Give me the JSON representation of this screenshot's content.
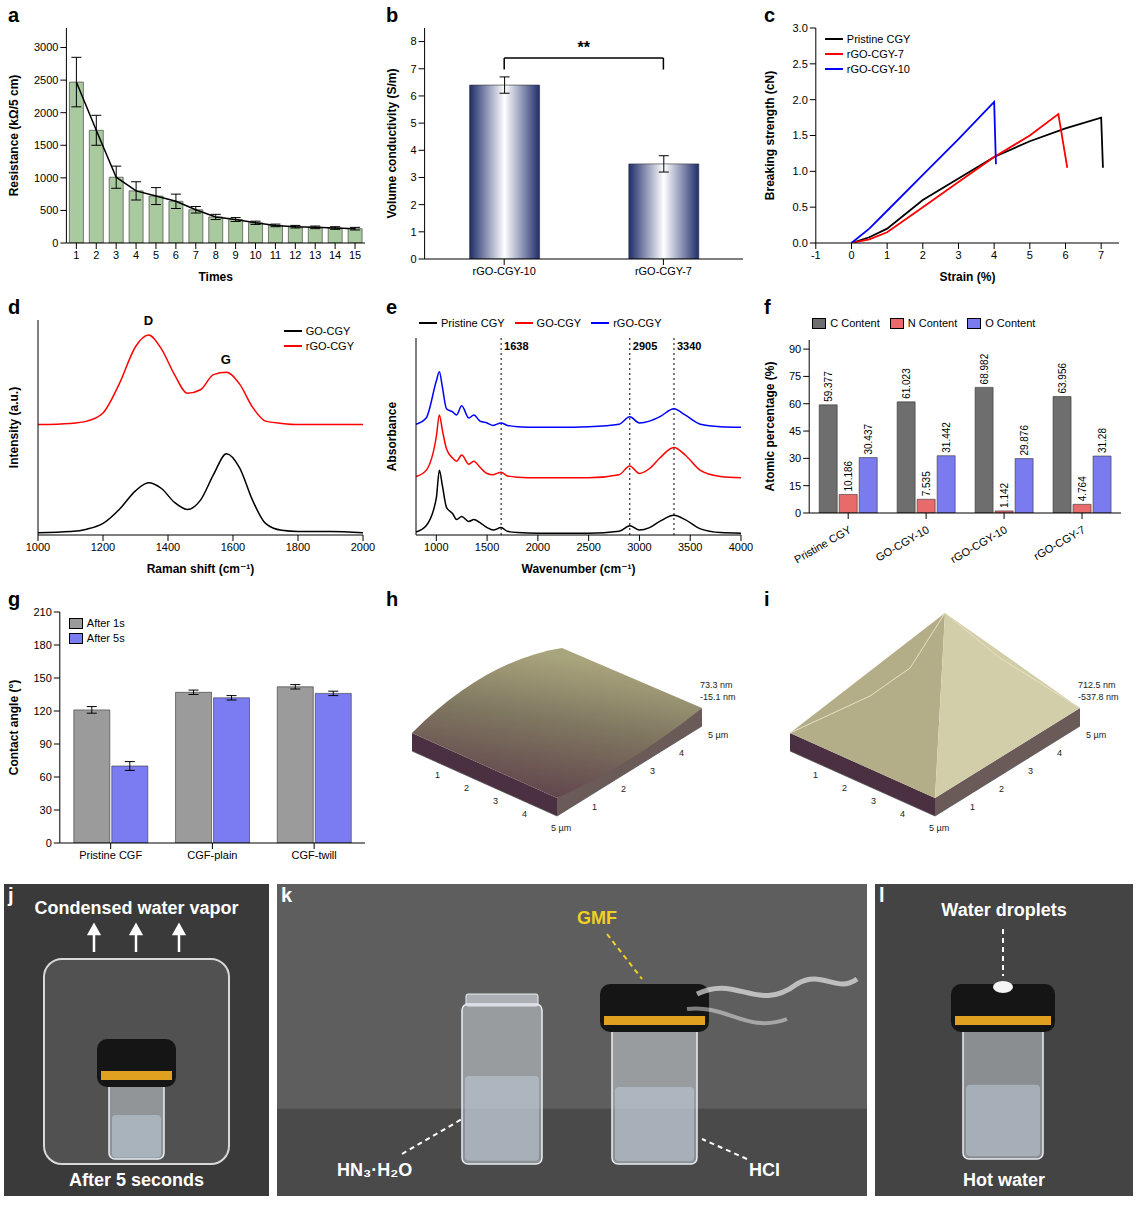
{
  "chart_data": [
    {
      "panel": "a",
      "type": "bar",
      "x_label": "Times",
      "y_label": "Resistance (kΩ/5 cm)",
      "categories": [
        "1",
        "2",
        "3",
        "4",
        "5",
        "6",
        "7",
        "8",
        "9",
        "10",
        "11",
        "12",
        "13",
        "14",
        "15"
      ],
      "series": [
        {
          "type": "bar",
          "color": "#a9c99e",
          "values": [
            2470,
            1730,
            1010,
            800,
            720,
            640,
            510,
            400,
            360,
            310,
            270,
            250,
            240,
            230,
            220
          ],
          "errors": [
            380,
            230,
            170,
            140,
            130,
            110,
            50,
            40,
            30,
            25,
            20,
            20,
            20,
            20,
            20
          ]
        },
        {
          "type": "line",
          "color": "#000000",
          "values": [
            2470,
            1730,
            1010,
            800,
            720,
            640,
            510,
            400,
            360,
            310,
            270,
            250,
            240,
            230,
            220
          ]
        }
      ],
      "ylim": [
        0,
        3300
      ],
      "yticks": [
        0,
        500,
        1000,
        1500,
        2000,
        2500,
        3000
      ]
    },
    {
      "panel": "b",
      "type": "bar",
      "y_label": "Volume conductivity (S/m)",
      "categories": [
        "rGO-CGY-10",
        "rGO-CGY-7"
      ],
      "values": [
        6.4,
        3.5
      ],
      "errors": [
        0.3,
        0.3
      ],
      "color": "#1f2d6b",
      "ylim": [
        0,
        8.5
      ],
      "yticks": [
        0,
        1,
        2,
        3,
        4,
        5,
        6,
        7,
        8
      ],
      "annotations": [
        {
          "text": "**",
          "between": [
            "rGO-CGY-10",
            "rGO-CGY-7"
          ]
        }
      ]
    },
    {
      "panel": "c",
      "type": "line",
      "x_label": "Strain (%)",
      "y_label": "Breaking strength (cN)",
      "series": [
        {
          "name": "Pristine CGY",
          "color": "#000000",
          "x": [
            0,
            0.5,
            1,
            2,
            3,
            4,
            5,
            6,
            7,
            7.05
          ],
          "values": [
            0,
            0.08,
            0.2,
            0.6,
            0.9,
            1.2,
            1.42,
            1.6,
            1.75,
            1.05
          ]
        },
        {
          "name": "rGO-CGY-7",
          "color": "#ff0000",
          "x": [
            0,
            0.5,
            1,
            2,
            3,
            4,
            5,
            5.8,
            6.05
          ],
          "values": [
            0,
            0.05,
            0.15,
            0.5,
            0.85,
            1.2,
            1.5,
            1.8,
            1.05
          ]
        },
        {
          "name": "rGO-CGY-10",
          "color": "#0000ff",
          "x": [
            0,
            0.5,
            1,
            2,
            3,
            4,
            4.05
          ],
          "values": [
            0,
            0.2,
            0.45,
            0.95,
            1.45,
            1.97,
            1.1
          ]
        }
      ],
      "xlim": [
        -1,
        7.5
      ],
      "xticks": [
        -1,
        0,
        1,
        2,
        3,
        4,
        5,
        6,
        7
      ],
      "ylim": [
        0,
        3
      ],
      "yticks": [
        {
          "value": 0,
          "label": "0.0"
        },
        0.5,
        {
          "value": 1,
          "label": "1.0"
        },
        1.5,
        {
          "value": 2,
          "label": "2.0"
        },
        2.5,
        {
          "value": 3,
          "label": "3.0"
        }
      ],
      "legend": "upper left"
    },
    {
      "panel": "d",
      "type": "line",
      "x_label": "Raman shift (cm⁻¹)",
      "y_label": "Intensity (a.u.)",
      "x": [
        1000,
        1100,
        1150,
        1200,
        1250,
        1300,
        1340,
        1380,
        1420,
        1460,
        1500,
        1540,
        1580,
        1620,
        1660,
        1700,
        1750,
        1800,
        1900,
        2000
      ],
      "series": [
        {
          "name": "GO-CGY",
          "color": "#000000",
          "values": [
            0.02,
            0.03,
            0.05,
            0.1,
            0.22,
            0.38,
            0.45,
            0.4,
            0.28,
            0.22,
            0.3,
            0.52,
            0.7,
            0.58,
            0.3,
            0.1,
            0.04,
            0.03,
            0.03,
            0.02
          ]
        },
        {
          "name": "rGO-CGY",
          "color": "#ff0000",
          "values": [
            0.95,
            0.96,
            0.98,
            1.05,
            1.3,
            1.62,
            1.72,
            1.6,
            1.38,
            1.22,
            1.25,
            1.38,
            1.4,
            1.3,
            1.1,
            0.98,
            0.96,
            0.95,
            0.95,
            0.95
          ]
        }
      ],
      "xlim": [
        1000,
        2000
      ],
      "xticks": [
        1000,
        1200,
        1400,
        1600,
        1800,
        2000
      ],
      "ylim": [
        0,
        1.85
      ],
      "tick_labels": "x",
      "legend": "upper right",
      "annotations": [
        {
          "text": "D",
          "x": 1340,
          "y": 1.76
        },
        {
          "text": "G",
          "x": 1578,
          "y": 1.43
        }
      ]
    },
    {
      "panel": "e",
      "type": "line",
      "x_label": "Wavenumber (cm⁻¹)",
      "y_label": "Absorbance",
      "x": [
        800,
        900,
        1000,
        1030,
        1060,
        1100,
        1160,
        1200,
        1250,
        1320,
        1370,
        1430,
        1500,
        1560,
        1638,
        1700,
        1800,
        2000,
        2200,
        2500,
        2800,
        2905,
        3000,
        3100,
        3200,
        3340,
        3450,
        3600,
        3800,
        4000
      ],
      "series": [
        {
          "name": "Pristine CGY",
          "color": "#000000",
          "values": [
            0.05,
            0.15,
            0.6,
            1.05,
            0.8,
            0.45,
            0.35,
            0.25,
            0.3,
            0.22,
            0.25,
            0.2,
            0.12,
            0.08,
            0.12,
            0.06,
            0.04,
            0.03,
            0.03,
            0.03,
            0.06,
            0.15,
            0.08,
            0.12,
            0.22,
            0.32,
            0.25,
            0.1,
            0.04,
            0.03
          ]
        },
        {
          "name": "GO-CGY",
          "color": "#ff0000",
          "values": [
            0.95,
            1.05,
            1.6,
            1.95,
            1.7,
            1.4,
            1.25,
            1.2,
            1.3,
            1.15,
            1.2,
            1.1,
            1.0,
            0.98,
            1.02,
            0.96,
            0.94,
            0.93,
            0.93,
            0.93,
            0.98,
            1.12,
            1.0,
            1.08,
            1.25,
            1.42,
            1.3,
            1.05,
            0.95,
            0.93
          ]
        },
        {
          "name": "rGO-CGY",
          "color": "#0000ff",
          "values": [
            1.8,
            1.9,
            2.5,
            2.65,
            2.4,
            2.05,
            2.0,
            1.95,
            2.1,
            1.9,
            1.95,
            1.85,
            1.82,
            1.78,
            1.82,
            1.78,
            1.76,
            1.75,
            1.75,
            1.76,
            1.8,
            1.92,
            1.82,
            1.85,
            1.92,
            2.05,
            1.95,
            1.8,
            1.76,
            1.75
          ]
        }
      ],
      "xlim": [
        800,
        4000
      ],
      "xticks": [
        1000,
        1500,
        2000,
        2500,
        3000,
        3500,
        4000
      ],
      "ylim": [
        0,
        3.2
      ],
      "tick_labels": "x",
      "legend": "top",
      "reference_lines": [
        1638,
        2905,
        3340
      ]
    },
    {
      "panel": "f",
      "type": "bar",
      "y_label": "Atomic percentage (%)",
      "categories": [
        "Pristine CGY",
        "GO-CGY-10",
        "rGO-CGY-10",
        "rGO-CGY-7"
      ],
      "series": [
        {
          "name": "C Content",
          "color": "#6e6e6e",
          "values": [
            59.377,
            61.023,
            68.982,
            63.956
          ]
        },
        {
          "name": "N Content",
          "color": "#e86a6a",
          "values": [
            10.186,
            7.535,
            1.142,
            4.764
          ]
        },
        {
          "name": "O Content",
          "color": "#7b7bf0",
          "values": [
            30.437,
            31.442,
            29.876,
            31.28
          ]
        }
      ],
      "ylim": [
        0,
        95
      ],
      "yticks": [
        0,
        15,
        30,
        45,
        60,
        75,
        90
      ],
      "data_labels": true,
      "legend": "top"
    },
    {
      "panel": "g",
      "type": "bar",
      "y_label": "Contact angle (°)",
      "categories": [
        "Pristine CGF",
        "CGF-plain",
        "CGF-twill"
      ],
      "series": [
        {
          "name": "After 1s",
          "color": "#9b9b9b",
          "values": [
            121,
            137,
            142
          ],
          "errors": [
            3,
            2,
            2
          ]
        },
        {
          "name": "After 5s",
          "color": "#7c7cf2",
          "values": [
            70,
            132,
            136
          ],
          "errors": [
            4,
            2,
            2
          ]
        }
      ],
      "ylim": [
        0,
        210
      ],
      "yticks": [
        0,
        30,
        60,
        90,
        120,
        150,
        180,
        210
      ],
      "legend": "upper left"
    }
  ],
  "afm_images": [
    {
      "panel": "h",
      "shape": "ridge",
      "z_labels": [
        "73.3 nm",
        "-15.1 nm"
      ],
      "axis_ticks": [
        "1",
        "2",
        "3",
        "4"
      ],
      "axis_end": "5 µm"
    },
    {
      "panel": "i",
      "shape": "peak",
      "z_labels": [
        "712.5 nm",
        "-537.8 nm"
      ],
      "axis_ticks": [
        "1",
        "2",
        "3",
        "4"
      ],
      "axis_end": "5 µm"
    }
  ],
  "photos": [
    {
      "panel": "j",
      "top_label": "Condensed water vapor",
      "bottom_label": "After 5 seconds"
    },
    {
      "panel": "k",
      "cap_label": "GMF",
      "left_vial_label": "HN₃·H₂O",
      "right_vial_label": "HCl"
    },
    {
      "panel": "l",
      "top_label": "Water droplets",
      "bottom_label": "Hot water"
    }
  ]
}
